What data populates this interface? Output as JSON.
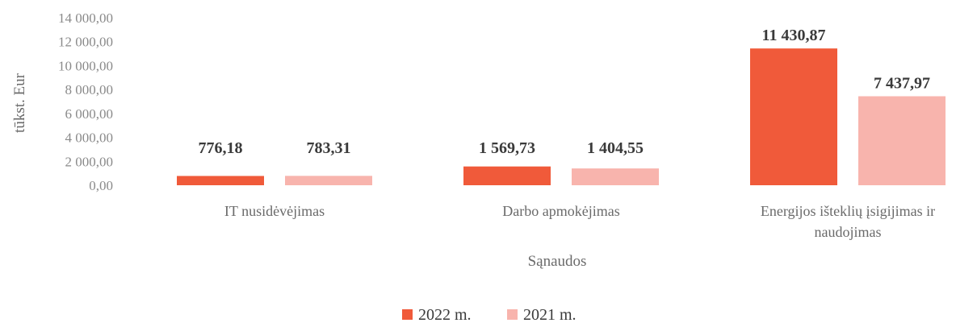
{
  "chart_data": {
    "type": "bar",
    "categories": [
      "IT nusidėvėjimas",
      "Darbo apmokėjimas",
      "Energijos išteklių įsigijimas ir naudojimas"
    ],
    "category_lines": [
      [
        "IT nusidėvėjimas"
      ],
      [
        "Darbo apmokėjimas"
      ],
      [
        "Energijos išteklių įsigijimas ir",
        "naudojimas"
      ]
    ],
    "series": [
      {
        "name": "2022 m.",
        "values": [
          776.18,
          1569.73,
          11430.87
        ],
        "labels": [
          "776,18",
          "1 569,73",
          "11 430,87"
        ],
        "color": "#f05a3a"
      },
      {
        "name": "2021 m.",
        "values": [
          783.31,
          1404.55,
          7437.97
        ],
        "labels": [
          "783,31",
          "1 404,55",
          "7 437,97"
        ],
        "color": "#f8b4ad"
      }
    ],
    "xlabel": "Sąnaudos",
    "ylabel": "tūkst. Eur",
    "ylim": [
      0,
      14000
    ],
    "yticks": [
      0,
      2000,
      4000,
      6000,
      8000,
      10000,
      12000,
      14000
    ],
    "ytick_labels": [
      "0,00",
      "2 000,00",
      "4 000,00",
      "6 000,00",
      "8 000,00",
      "10 000,00",
      "12 000,00",
      "14 000,00"
    ],
    "grid": false,
    "legend_position": "bottom-center"
  }
}
